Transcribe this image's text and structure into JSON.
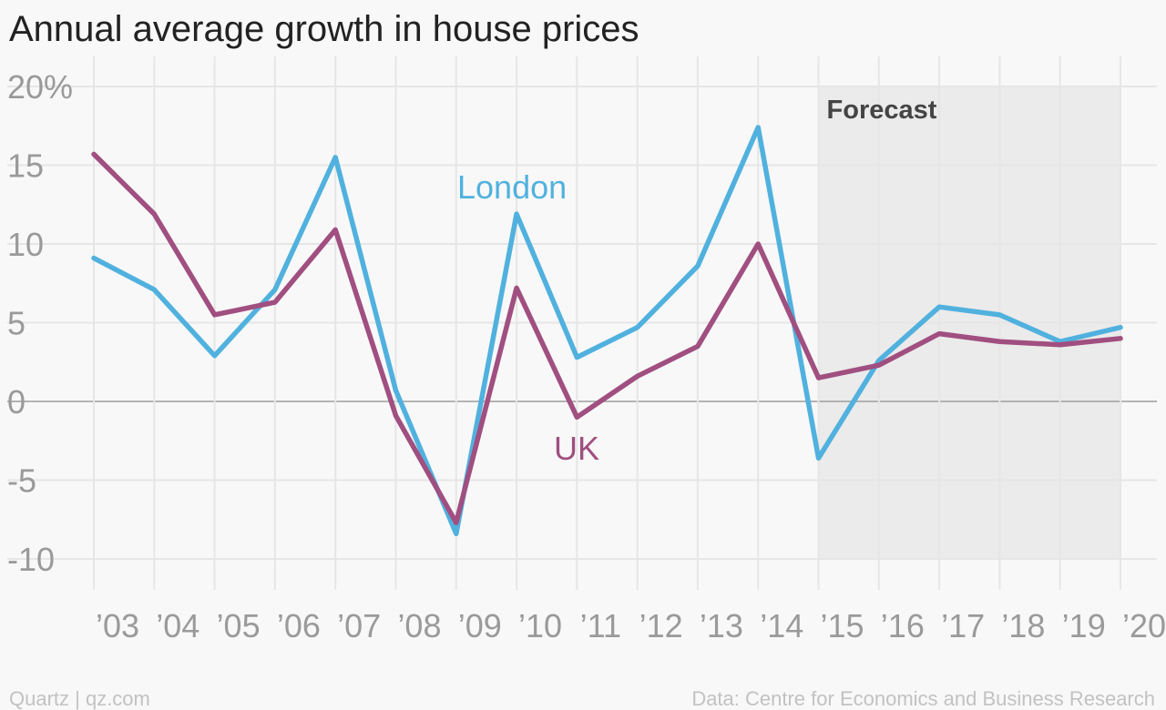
{
  "chart_data": {
    "type": "line",
    "title": "Annual average growth in house prices",
    "categories": [
      "’03",
      "’04",
      "’05",
      "’06",
      "’07",
      "’08",
      "’09",
      "’10",
      "’11",
      "’12",
      "’13",
      "’14",
      "’15",
      "’16",
      "’17",
      "’18",
      "’19",
      "’20"
    ],
    "ylim": [
      -10,
      20
    ],
    "yticks": [
      20,
      15,
      10,
      5,
      0,
      -5,
      -10
    ],
    "ytick_labels": [
      "20%",
      "15",
      "10",
      "5",
      "0",
      "-5",
      "-10"
    ],
    "grid": true,
    "series": [
      {
        "name": "London",
        "color": "#51b1de",
        "values": [
          9.1,
          7.1,
          2.9,
          7.1,
          15.5,
          0.7,
          -8.4,
          11.9,
          2.8,
          4.7,
          8.6,
          17.4,
          -3.6,
          2.6,
          6.0,
          5.5,
          3.8,
          4.7
        ]
      },
      {
        "name": "UK",
        "color": "#a04f80",
        "values": [
          15.7,
          11.9,
          5.5,
          6.3,
          10.9,
          -0.9,
          -7.7,
          7.2,
          -1.0,
          1.6,
          3.5,
          10.0,
          1.5,
          2.3,
          4.3,
          3.8,
          3.6,
          4.0
        ]
      }
    ],
    "forecast": {
      "label": "Forecast",
      "start_category": "’15",
      "end_category": "’20"
    }
  },
  "footer": {
    "left": "Quartz | qz.com",
    "right": "Data: Centre for Economics and Business Research"
  },
  "colors": {
    "background": "#f8f8f8",
    "forecast_shade": "#ebebeb",
    "grid": "#e6e6e6",
    "zero_line": "#9e9e9e"
  }
}
